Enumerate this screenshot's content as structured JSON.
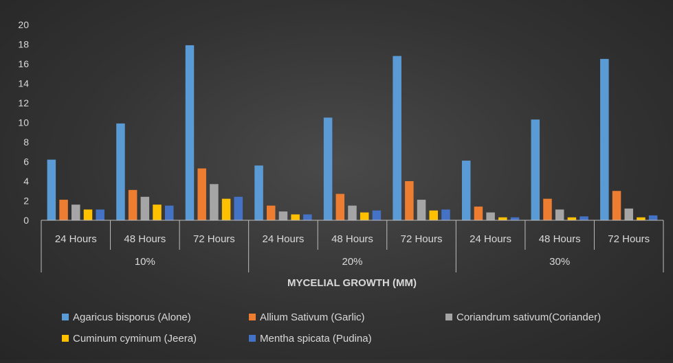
{
  "chart_data": {
    "type": "bar",
    "xlabel": "MYCELIAL GROWTH (MM)",
    "ylabel": "",
    "ylim": [
      0,
      20
    ],
    "yticks": [
      0,
      2,
      4,
      6,
      8,
      10,
      12,
      14,
      16,
      18,
      20
    ],
    "groups": [
      {
        "label": "10%",
        "categories": [
          "24 Hours",
          "48 Hours",
          "72 Hours"
        ]
      },
      {
        "label": "20%",
        "categories": [
          "24 Hours",
          "48 Hours",
          "72 Hours"
        ]
      },
      {
        "label": "30%",
        "categories": [
          "24 Hours",
          "48 Hours",
          "72 Hours"
        ]
      }
    ],
    "categories": [
      "24 Hours",
      "48 Hours",
      "72 Hours",
      "24 Hours",
      "48 Hours",
      "72 Hours",
      "24 Hours",
      "48 Hours",
      "72 Hours"
    ],
    "series": [
      {
        "name": "Agaricus bisporus (Alone)",
        "color": "#5B9BD5",
        "values": [
          6.2,
          9.9,
          17.9,
          5.6,
          10.5,
          16.8,
          6.1,
          10.3,
          16.5
        ]
      },
      {
        "name": "Allium Sativum (Garlic)",
        "color": "#ED7D31",
        "values": [
          2.1,
          3.1,
          5.3,
          1.5,
          2.7,
          4.0,
          1.4,
          2.2,
          3.0
        ]
      },
      {
        "name": "Coriandrum  sativum(Coriander)",
        "color": "#A5A5A5",
        "values": [
          1.6,
          2.4,
          3.7,
          0.9,
          1.5,
          2.1,
          0.8,
          1.1,
          1.2
        ]
      },
      {
        "name": "Cuminum cyminum (Jeera)",
        "color": "#FFC000",
        "values": [
          1.1,
          1.6,
          2.2,
          0.6,
          0.8,
          1.0,
          0.3,
          0.3,
          0.3
        ]
      },
      {
        "name": "Mentha spicata (Pudina)",
        "color": "#4472C4",
        "values": [
          1.1,
          1.5,
          2.4,
          0.6,
          1.0,
          1.1,
          0.3,
          0.4,
          0.5
        ]
      }
    ],
    "legend_position": "bottom",
    "grid": false
  }
}
